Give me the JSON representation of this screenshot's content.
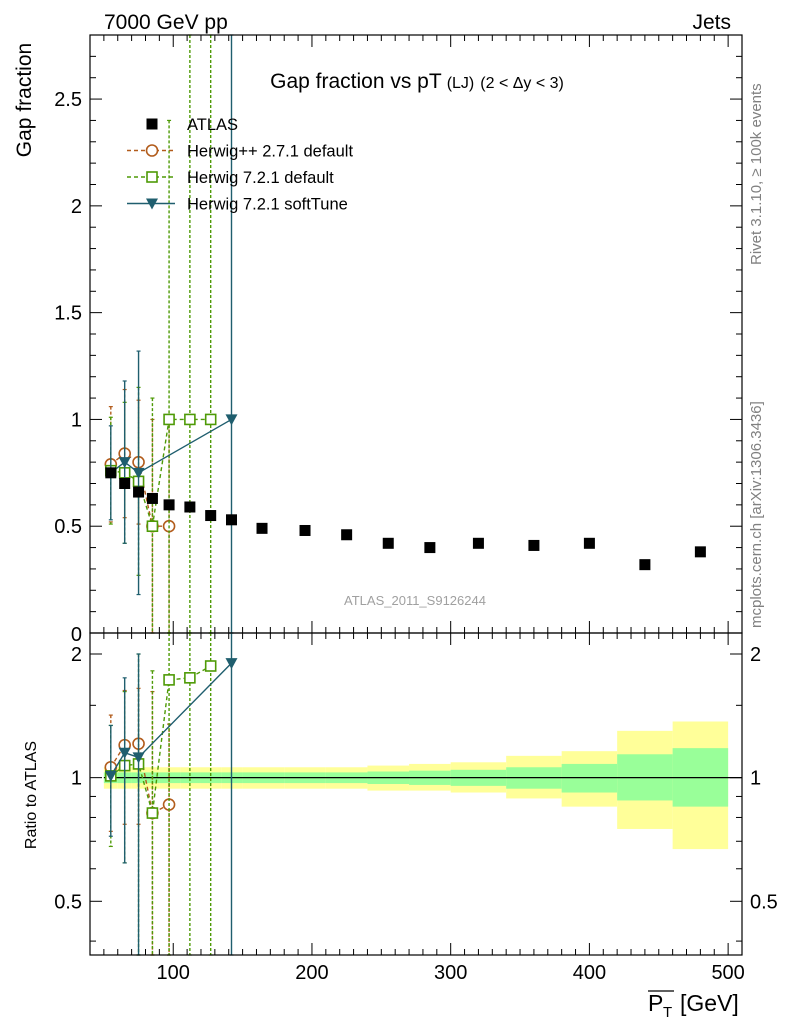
{
  "header": {
    "left": "7000 GeV pp",
    "right": "Jets"
  },
  "side_labels": {
    "rivet": "Rivet 3.1.10, ≥ 100k events",
    "mcplots": "mcplots.cern.ch [arXiv:1306.3436]"
  },
  "chart_data": [
    {
      "panel": "main",
      "type": "scatter",
      "title": "Gap fraction vs pT (LJ) (2 < Δy < 3)",
      "title_main": "Gap fraction vs pT",
      "title_small": "(LJ)",
      "title_range": "(2 < Δy < 3)",
      "ylabel": "Gap fraction",
      "xlim": [
        40,
        510
      ],
      "ylim": [
        0,
        2.8
      ],
      "yticks": [
        0.5,
        1,
        1.5,
        2,
        2.5
      ],
      "ytick_labels": [
        "0.5",
        "1",
        "1.5",
        "2",
        "2.5"
      ],
      "bottom_tick_label": "0",
      "watermark": "ATLAS_2011_S9126244",
      "legend_position": "top-left",
      "series": [
        {
          "name": "ATLAS",
          "color": "#000000",
          "marker": "square-filled",
          "x": [
            55,
            65,
            75,
            85,
            97,
            112,
            127,
            142,
            164,
            195,
            225,
            255,
            285,
            320,
            360,
            400,
            440,
            480
          ],
          "y": [
            0.75,
            0.7,
            0.66,
            0.63,
            0.6,
            0.59,
            0.55,
            0.53,
            0.49,
            0.48,
            0.46,
            0.42,
            0.4,
            0.42,
            0.41,
            0.42,
            0.32,
            0.38
          ]
        },
        {
          "name": "Herwig++ 2.7.1 default",
          "color": "#b25c1c",
          "marker": "circle-open",
          "dash": "dashed",
          "x": [
            55,
            65,
            75,
            85,
            97
          ],
          "y": [
            0.79,
            0.84,
            0.8,
            0.5,
            0.5
          ],
          "err_lo": [
            0.27,
            0.3,
            0.29,
            0.5,
            0.5
          ],
          "err_hi": [
            0.27,
            0.3,
            0.29,
            0.5,
            0.5
          ]
        },
        {
          "name": "Herwig 7.2.1 default",
          "color": "#4e9a06",
          "marker": "square-open",
          "dash": "dashed",
          "x": [
            55,
            65,
            75,
            85,
            97,
            112,
            127
          ],
          "y": [
            0.76,
            0.75,
            0.71,
            0.5,
            1.0,
            1.0,
            1.0
          ],
          "err_lo": [
            0.25,
            0.33,
            0.44,
            0.5,
            1.0,
            1.0,
            1.0
          ],
          "err_hi": [
            0.25,
            0.33,
            0.44,
            0.6,
            1.4,
            1.8,
            1.8
          ]
        },
        {
          "name": "Herwig 7.2.1 softTune",
          "color": "#1f5e6e",
          "marker": "triangle-down",
          "dash": "solid",
          "x": [
            55,
            65,
            75,
            142
          ],
          "y": [
            0.75,
            0.8,
            0.75,
            1.0
          ],
          "err_lo": [
            0.22,
            0.38,
            0.57,
            1.0
          ],
          "err_hi": [
            0.22,
            0.38,
            0.57,
            1.8
          ]
        }
      ]
    },
    {
      "panel": "ratio",
      "type": "scatter",
      "ylabel": "Ratio to ATLAS",
      "xlabel_main": "P",
      "xlabel_sub": "T",
      "xlabel_unit": "[GeV]",
      "xlim": [
        40,
        510
      ],
      "ylim": [
        0.37,
        2.25
      ],
      "yticks": [
        0.5,
        1,
        2
      ],
      "ytick_labels": [
        "0.5",
        "1",
        "2"
      ],
      "xticks": [
        100,
        200,
        300,
        400,
        500
      ],
      "xtick_labels": [
        "100",
        "200",
        "300",
        "400",
        "500"
      ],
      "bands": {
        "yellow_color": "#ffff99",
        "green_color": "#99ff99",
        "bins": [
          {
            "lo": 50,
            "hi": 60,
            "y2": [
              0.94,
              1.06
            ],
            "y1": [
              0.97,
              1.03
            ]
          },
          {
            "lo": 60,
            "hi": 70,
            "y2": [
              0.94,
              1.06
            ],
            "y1": [
              0.97,
              1.03
            ]
          },
          {
            "lo": 70,
            "hi": 80,
            "y2": [
              0.94,
              1.06
            ],
            "y1": [
              0.97,
              1.03
            ]
          },
          {
            "lo": 80,
            "hi": 90,
            "y2": [
              0.94,
              1.06
            ],
            "y1": [
              0.97,
              1.03
            ]
          },
          {
            "lo": 90,
            "hi": 105,
            "y2": [
              0.94,
              1.06
            ],
            "y1": [
              0.97,
              1.03
            ]
          },
          {
            "lo": 105,
            "hi": 120,
            "y2": [
              0.94,
              1.06
            ],
            "y1": [
              0.97,
              1.03
            ]
          },
          {
            "lo": 120,
            "hi": 135,
            "y2": [
              0.94,
              1.06
            ],
            "y1": [
              0.97,
              1.03
            ]
          },
          {
            "lo": 135,
            "hi": 150,
            "y2": [
              0.94,
              1.06
            ],
            "y1": [
              0.97,
              1.03
            ]
          },
          {
            "lo": 150,
            "hi": 180,
            "y2": [
              0.94,
              1.06
            ],
            "y1": [
              0.97,
              1.03
            ]
          },
          {
            "lo": 180,
            "hi": 210,
            "y2": [
              0.94,
              1.06
            ],
            "y1": [
              0.97,
              1.03
            ]
          },
          {
            "lo": 210,
            "hi": 240,
            "y2": [
              0.94,
              1.06
            ],
            "y1": [
              0.97,
              1.03
            ]
          },
          {
            "lo": 240,
            "hi": 270,
            "y2": [
              0.93,
              1.07
            ],
            "y1": [
              0.965,
              1.035
            ]
          },
          {
            "lo": 270,
            "hi": 300,
            "y2": [
              0.93,
              1.08
            ],
            "y1": [
              0.96,
              1.04
            ]
          },
          {
            "lo": 300,
            "hi": 340,
            "y2": [
              0.92,
              1.09
            ],
            "y1": [
              0.955,
              1.045
            ]
          },
          {
            "lo": 340,
            "hi": 380,
            "y2": [
              0.89,
              1.13
            ],
            "y1": [
              0.94,
              1.06
            ]
          },
          {
            "lo": 380,
            "hi": 420,
            "y2": [
              0.85,
              1.16
            ],
            "y1": [
              0.92,
              1.08
            ]
          },
          {
            "lo": 420,
            "hi": 460,
            "y2": [
              0.75,
              1.3
            ],
            "y1": [
              0.88,
              1.14
            ]
          },
          {
            "lo": 460,
            "hi": 500,
            "y2": [
              0.67,
              1.37
            ],
            "y1": [
              0.85,
              1.18
            ]
          }
        ]
      },
      "series": [
        {
          "name": "Herwig++ 2.7.1 default",
          "color": "#b25c1c",
          "marker": "circle-open",
          "dash": "dashed",
          "x": [
            55,
            65,
            75,
            85,
            97
          ],
          "y": [
            1.06,
            1.2,
            1.21,
            0.82,
            0.86
          ],
          "err_lo": [
            0.32,
            0.43,
            0.44,
            0.45,
            0.49
          ],
          "err_hi": [
            0.36,
            0.43,
            0.44,
            0.8,
            0.49
          ]
        },
        {
          "name": "Herwig 7.2.1 default",
          "color": "#4e9a06",
          "marker": "square-open",
          "dash": "dashed",
          "x": [
            55,
            65,
            75,
            85,
            97,
            112,
            127
          ],
          "y": [
            1.01,
            1.07,
            1.08,
            0.82,
            1.73,
            1.75,
            1.87
          ],
          "err_lo": [
            0.33,
            0.45,
            0.71,
            0.45,
            1.36,
            1.38,
            1.5
          ],
          "err_hi": [
            0.33,
            0.55,
            0.92,
            1.0,
            0.52,
            0.5,
            0.38
          ]
        },
        {
          "name": "Herwig 7.2.1 softTune",
          "color": "#1f5e6e",
          "marker": "triangle-down",
          "dash": "solid",
          "x": [
            55,
            65,
            75,
            142
          ],
          "y": [
            1.01,
            1.15,
            1.12,
            1.9
          ],
          "err_lo": [
            0.29,
            0.53,
            0.75,
            1.53
          ],
          "err_hi": [
            0.33,
            0.6,
            0.88,
            0.35
          ]
        }
      ]
    }
  ]
}
